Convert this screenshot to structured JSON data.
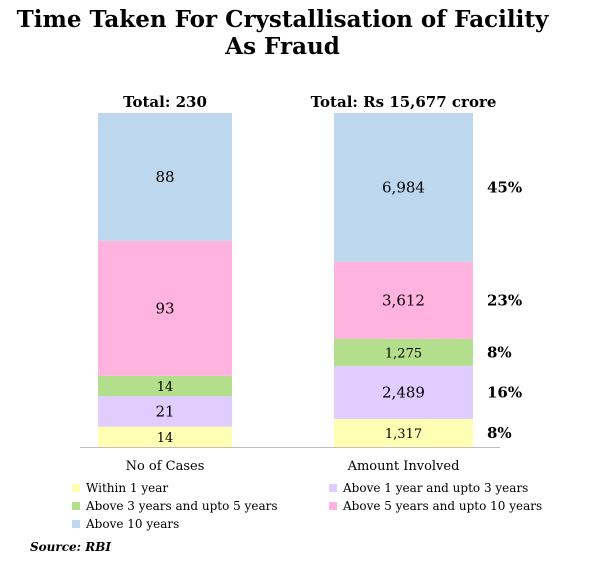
{
  "title": "Time Taken For Crystallisation of Facility As Fraud",
  "source": "Source: RBI",
  "chart_data": {
    "type": "bar",
    "stacked": true,
    "categories": [
      "No of Cases",
      "Amount Involved"
    ],
    "totals": [
      "Total: 230",
      "Total: Rs 15,677 crore"
    ],
    "series": [
      {
        "name": "Within 1 year",
        "color": "#ffffb3",
        "values": [
          14,
          1317
        ],
        "labels": [
          "14",
          "1,317"
        ],
        "share": "8%"
      },
      {
        "name": "Above 1 year and upto 3 years",
        "color": "#e0ccff",
        "values": [
          21,
          2489
        ],
        "labels": [
          "21",
          "2,489"
        ],
        "share": "16%"
      },
      {
        "name": "Above 3 years and upto 5 years",
        "color": "#b3de8c",
        "values": [
          14,
          1275
        ],
        "labels": [
          "14",
          "1,275"
        ],
        "share": "8%"
      },
      {
        "name": "Above 5 years and upto 10 years",
        "color": "#ffb3de",
        "values": [
          93,
          3612
        ],
        "labels": [
          "93",
          "3,612"
        ],
        "share": "23%"
      },
      {
        "name": "Above 10 years",
        "color": "#bdd7ee",
        "values": [
          88,
          6984
        ],
        "labels": [
          "88",
          "6,984"
        ],
        "share": "45%"
      }
    ],
    "legend_position": "bottom",
    "grid": false
  }
}
